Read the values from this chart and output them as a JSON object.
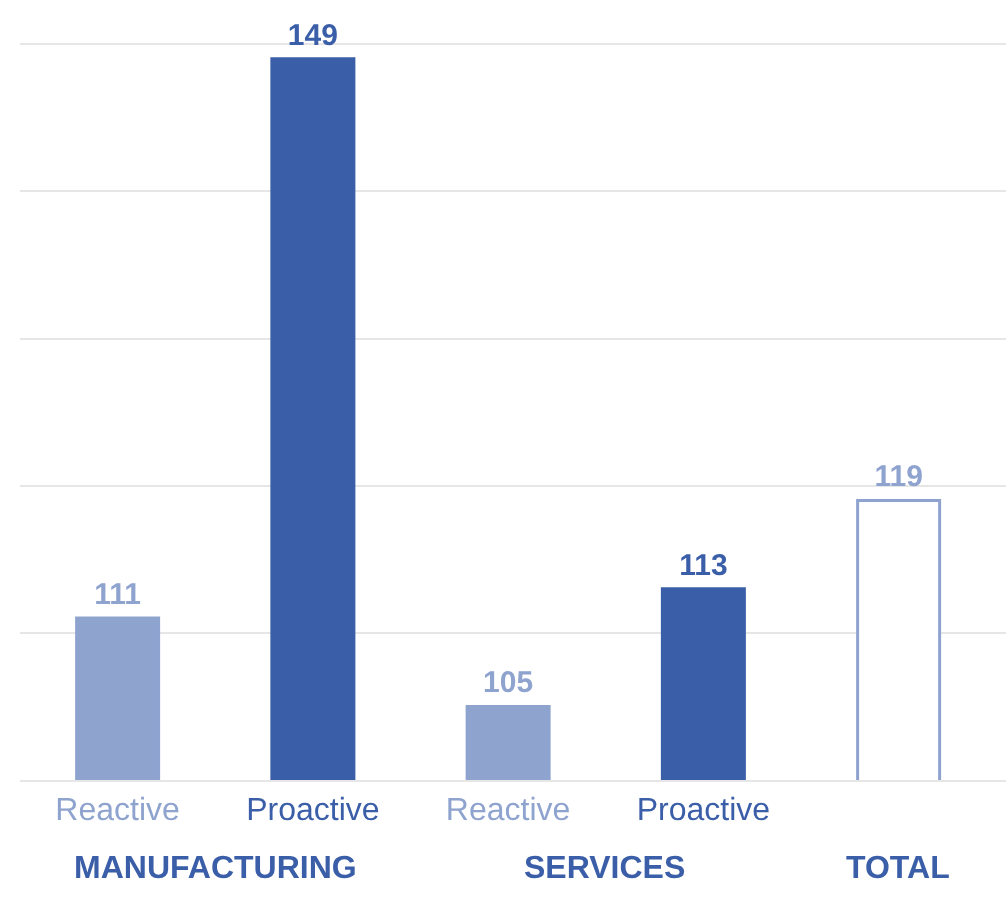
{
  "chart_data": {
    "type": "bar",
    "categories": [
      "Reactive",
      "Proactive",
      "Reactive",
      "Proactive",
      null
    ],
    "values": [
      111,
      149,
      105,
      113,
      119
    ],
    "colors": [
      "#8fa3cf",
      "#3b5ea8",
      "#8fa3cf",
      "#3b5ea8",
      "#ffffff"
    ],
    "data_labels": true,
    "ylim": [
      100,
      153
    ],
    "yticks": [
      {
        "value": 100,
        "label": null
      },
      {
        "value": 110,
        "label": null
      },
      {
        "value": 120,
        "label": null
      },
      {
        "value": 130,
        "label": null
      },
      {
        "value": 140,
        "label": null
      },
      {
        "value": 150,
        "label": null
      }
    ],
    "grid": "y",
    "tick_labels": "x",
    "annotations": [
      "MANUFACTURING",
      "SERVICES",
      "TOTAL"
    ]
  }
}
